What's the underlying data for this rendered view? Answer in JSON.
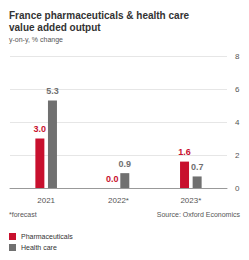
{
  "chart_data": {
    "type": "bar",
    "title": "France pharmaceuticals & health care value added output",
    "subtitle": "y-on-y, % change",
    "categories": [
      "2021",
      "2022*",
      "2023*"
    ],
    "series": [
      {
        "name": "Pharmaceuticals",
        "color": "#c8102e",
        "values": [
          3.0,
          0.0,
          1.6
        ],
        "value_labels": [
          "3.0",
          "0.0",
          "1.6"
        ]
      },
      {
        "name": "Health care",
        "color": "#707070",
        "values": [
          5.3,
          0.9,
          0.7
        ],
        "value_labels": [
          "5.3",
          "0.9",
          "0.7"
        ]
      }
    ],
    "ylim": [
      0,
      8
    ],
    "yticks": [
      0,
      2,
      4,
      6,
      8
    ],
    "grid": true,
    "data_labels": true,
    "legend": "bottom-left",
    "annotations": [
      "*forecast",
      "Source: Oxford Economics"
    ]
  }
}
